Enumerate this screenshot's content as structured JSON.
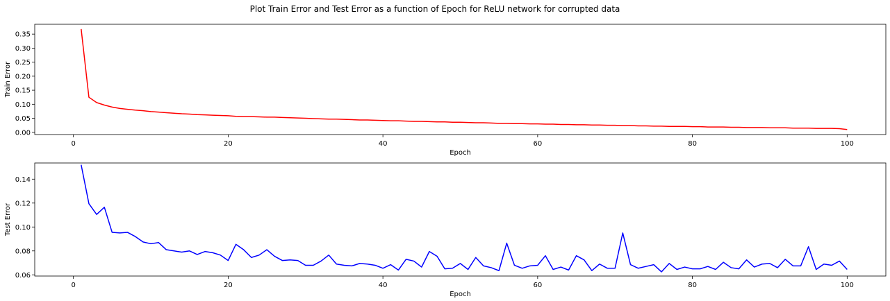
{
  "suptitle": "Plot Train Error and Test Error as a function of Epoch for ReLU network for corrupted data",
  "chart_data": [
    {
      "type": "line",
      "xlabel": "Epoch",
      "ylabel": "Train Error",
      "xlim": [
        -5,
        105
      ],
      "ylim": [
        -0.008,
        0.385
      ],
      "xticks": [
        0,
        20,
        40,
        60,
        80,
        100
      ],
      "yticks": [
        0.0,
        0.05,
        0.1,
        0.15,
        0.2,
        0.25,
        0.3,
        0.35
      ],
      "ytick_labels": [
        "0.00",
        "0.05",
        "0.10",
        "0.15",
        "0.20",
        "0.25",
        "0.30",
        "0.35"
      ],
      "grid": false,
      "series": [
        {
          "color": "#ff0000",
          "x": [
            1,
            2,
            3,
            4,
            5,
            6,
            7,
            8,
            9,
            10,
            11,
            12,
            13,
            14,
            15,
            16,
            17,
            18,
            19,
            20,
            21,
            22,
            23,
            24,
            25,
            26,
            27,
            28,
            29,
            30,
            31,
            32,
            33,
            34,
            35,
            36,
            37,
            38,
            39,
            40,
            41,
            42,
            43,
            44,
            45,
            46,
            47,
            48,
            49,
            50,
            51,
            52,
            53,
            54,
            55,
            56,
            57,
            58,
            59,
            60,
            61,
            62,
            63,
            64,
            65,
            66,
            67,
            68,
            69,
            70,
            71,
            72,
            73,
            74,
            75,
            76,
            77,
            78,
            79,
            80,
            81,
            82,
            83,
            84,
            85,
            86,
            87,
            88,
            89,
            90,
            91,
            92,
            93,
            94,
            95,
            96,
            97,
            98,
            99,
            100
          ],
          "values": [
            0.368,
            0.125,
            0.106,
            0.097,
            0.09,
            0.085,
            0.082,
            0.079,
            0.077,
            0.074,
            0.072,
            0.07,
            0.068,
            0.066,
            0.065,
            0.063,
            0.062,
            0.061,
            0.06,
            0.059,
            0.057,
            0.056,
            0.056,
            0.055,
            0.054,
            0.054,
            0.053,
            0.052,
            0.051,
            0.05,
            0.049,
            0.048,
            0.047,
            0.047,
            0.046,
            0.045,
            0.044,
            0.044,
            0.043,
            0.042,
            0.041,
            0.041,
            0.04,
            0.039,
            0.039,
            0.038,
            0.037,
            0.037,
            0.036,
            0.036,
            0.035,
            0.034,
            0.034,
            0.033,
            0.032,
            0.032,
            0.031,
            0.031,
            0.03,
            0.03,
            0.029,
            0.029,
            0.028,
            0.028,
            0.027,
            0.027,
            0.026,
            0.026,
            0.025,
            0.025,
            0.024,
            0.024,
            0.023,
            0.023,
            0.022,
            0.022,
            0.021,
            0.021,
            0.021,
            0.02,
            0.02,
            0.019,
            0.019,
            0.019,
            0.018,
            0.018,
            0.017,
            0.017,
            0.017,
            0.016,
            0.016,
            0.016,
            0.015,
            0.015,
            0.015,
            0.014,
            0.014,
            0.014,
            0.013,
            0.01
          ]
        }
      ]
    },
    {
      "type": "line",
      "xlabel": "Epoch",
      "ylabel": "Test Error",
      "xlim": [
        -5,
        105
      ],
      "ylim": [
        0.059,
        0.1535
      ],
      "xticks": [
        0,
        20,
        40,
        60,
        80,
        100
      ],
      "yticks": [
        0.06,
        0.08,
        0.1,
        0.12,
        0.14
      ],
      "ytick_labels": [
        "0.06",
        "0.08",
        "0.10",
        "0.12",
        "0.14"
      ],
      "grid": false,
      "series": [
        {
          "color": "#0000ff",
          "x": [
            1,
            2,
            3,
            4,
            5,
            6,
            7,
            8,
            9,
            10,
            11,
            12,
            13,
            14,
            15,
            16,
            17,
            18,
            19,
            20,
            21,
            22,
            23,
            24,
            25,
            26,
            27,
            28,
            29,
            30,
            31,
            32,
            33,
            34,
            35,
            36,
            37,
            38,
            39,
            40,
            41,
            42,
            43,
            44,
            45,
            46,
            47,
            48,
            49,
            50,
            51,
            52,
            53,
            54,
            55,
            56,
            57,
            58,
            59,
            60,
            61,
            62,
            63,
            64,
            65,
            66,
            67,
            68,
            69,
            70,
            71,
            72,
            73,
            74,
            75,
            76,
            77,
            78,
            79,
            80,
            81,
            82,
            83,
            84,
            85,
            86,
            87,
            88,
            89,
            90,
            91,
            92,
            93,
            94,
            95,
            96,
            97,
            98,
            99,
            100
          ],
          "values": [
            0.152,
            0.1195,
            0.1105,
            0.1165,
            0.0955,
            0.095,
            0.0955,
            0.092,
            0.0875,
            0.086,
            0.087,
            0.081,
            0.08,
            0.079,
            0.08,
            0.077,
            0.0795,
            0.0785,
            0.0765,
            0.072,
            0.0855,
            0.081,
            0.0745,
            0.0765,
            0.081,
            0.0755,
            0.072,
            0.0725,
            0.072,
            0.068,
            0.068,
            0.0715,
            0.0765,
            0.069,
            0.068,
            0.0675,
            0.0695,
            0.069,
            0.068,
            0.0655,
            0.0685,
            0.064,
            0.073,
            0.0715,
            0.0665,
            0.0795,
            0.0755,
            0.065,
            0.0655,
            0.0695,
            0.0645,
            0.0745,
            0.0675,
            0.066,
            0.0635,
            0.0865,
            0.068,
            0.0655,
            0.0675,
            0.068,
            0.076,
            0.0645,
            0.0665,
            0.064,
            0.076,
            0.0725,
            0.0635,
            0.069,
            0.0655,
            0.0655,
            0.095,
            0.0685,
            0.0655,
            0.067,
            0.0685,
            0.0625,
            0.0695,
            0.0645,
            0.0665,
            0.065,
            0.065,
            0.067,
            0.0645,
            0.0705,
            0.066,
            0.065,
            0.0725,
            0.0665,
            0.069,
            0.0695,
            0.066,
            0.073,
            0.0675,
            0.0675,
            0.0835,
            0.0645,
            0.069,
            0.068,
            0.0715,
            0.0645
          ]
        }
      ]
    }
  ]
}
